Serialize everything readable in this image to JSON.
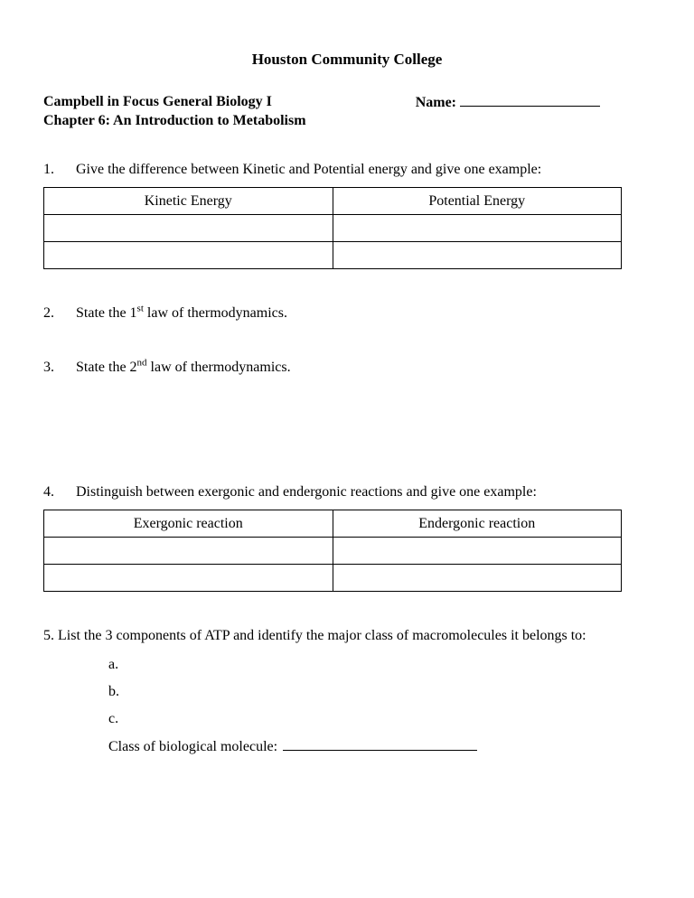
{
  "title": "Houston Community College",
  "header": {
    "course": "Campbell in Focus General Biology I",
    "name_label": "Name:",
    "chapter": "Chapter 6: An Introduction to Metabolism"
  },
  "q1": {
    "num": "1.",
    "text": "Give the difference between Kinetic and Potential energy and give one example:",
    "col1": "Kinetic Energy",
    "col2": "Potential Energy"
  },
  "q2": {
    "num": "2.",
    "pre": "State the 1",
    "sup": "st",
    "post": " law of thermodynamics."
  },
  "q3": {
    "num": "3.",
    "pre": "State the 2",
    "sup": "nd",
    "post": " law of thermodynamics."
  },
  "q4": {
    "num": "4.",
    "text": "Distinguish between exergonic and endergonic reactions and give one example:",
    "col1": "Exergonic reaction",
    "col2": "Endergonic reaction"
  },
  "q5": {
    "text": "5. List the 3 components of ATP and identify the major class of macromolecules it belongs to:",
    "a": "a.",
    "b": "b.",
    "c": "c.",
    "class_label": "Class of biological molecule:"
  }
}
